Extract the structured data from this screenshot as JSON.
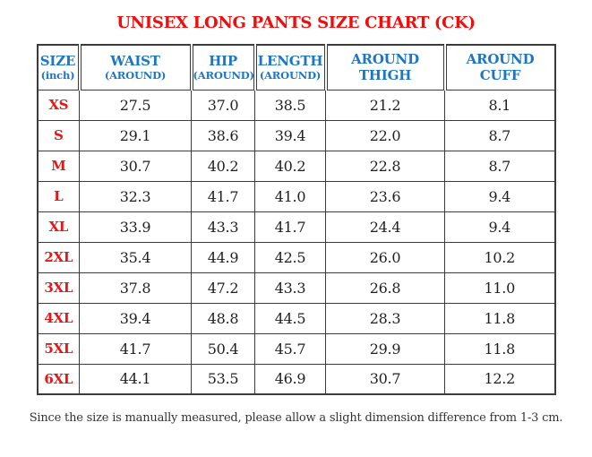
{
  "page": {
    "title": "UNISEX LONG PANTS SIZE CHART (CK)",
    "note": "Since the size is manually measured, please allow a slight dimension difference from 1-3 cm."
  },
  "colors": {
    "title_red": "#f20d0d",
    "header_blue": "#1d76c4",
    "size_red": "#ee1212",
    "value_text": "#1f1f1f",
    "border": "#3b3b3b",
    "note_text": "#333333"
  },
  "table": {
    "columns": [
      {
        "label": "SIZE",
        "sub": "(inch)"
      },
      {
        "label": "WAIST",
        "sub": "(AROUND)"
      },
      {
        "label": "HIP",
        "sub": "(AROUND)"
      },
      {
        "label": "LENGTH",
        "sub": "(AROUND)"
      },
      {
        "label": "AROUND",
        "sub": "THIGH"
      },
      {
        "label": "AROUND",
        "sub": "CUFF"
      }
    ],
    "rows": [
      {
        "size": "XS",
        "values": [
          "27.5",
          "37.0",
          "38.5",
          "21.2",
          "8.1"
        ]
      },
      {
        "size": "S",
        "values": [
          "29.1",
          "38.6",
          "39.4",
          "22.0",
          "8.7"
        ]
      },
      {
        "size": "M",
        "values": [
          "30.7",
          "40.2",
          "40.2",
          "22.8",
          "8.7"
        ]
      },
      {
        "size": "L",
        "values": [
          "32.3",
          "41.7",
          "41.0",
          "23.6",
          "9.4"
        ]
      },
      {
        "size": "XL",
        "values": [
          "33.9",
          "43.3",
          "41.7",
          "24.4",
          "9.4"
        ]
      },
      {
        "size": "2XL",
        "values": [
          "35.4",
          "44.9",
          "42.5",
          "26.0",
          "10.2"
        ]
      },
      {
        "size": "3XL",
        "values": [
          "37.8",
          "47.2",
          "43.3",
          "26.8",
          "11.0"
        ]
      },
      {
        "size": "4XL",
        "values": [
          "39.4",
          "48.8",
          "44.5",
          "28.3",
          "11.8"
        ]
      },
      {
        "size": "5XL",
        "values": [
          "41.7",
          "50.4",
          "45.7",
          "29.9",
          "11.8"
        ]
      },
      {
        "size": "6XL",
        "values": [
          "44.1",
          "53.5",
          "46.9",
          "30.7",
          "12.2"
        ]
      }
    ]
  },
  "chart_data": {
    "type": "table",
    "title": "UNISEX LONG PANTS SIZE CHART (CK)",
    "unit": "inch",
    "columns": [
      "SIZE (inch)",
      "WAIST (AROUND)",
      "HIP (AROUND)",
      "LENGTH (AROUND)",
      "AROUND THIGH",
      "AROUND CUFF"
    ],
    "rows": [
      [
        "XS",
        27.5,
        37.0,
        38.5,
        21.2,
        8.1
      ],
      [
        "S",
        29.1,
        38.6,
        39.4,
        22.0,
        8.7
      ],
      [
        "M",
        30.7,
        40.2,
        40.2,
        22.8,
        8.7
      ],
      [
        "L",
        32.3,
        41.7,
        41.0,
        23.6,
        9.4
      ],
      [
        "XL",
        33.9,
        43.3,
        41.7,
        24.4,
        9.4
      ],
      [
        "2XL",
        35.4,
        44.9,
        42.5,
        26.0,
        10.2
      ],
      [
        "3XL",
        37.8,
        47.2,
        43.3,
        26.8,
        11.0
      ],
      [
        "4XL",
        39.4,
        48.8,
        44.5,
        28.3,
        11.8
      ],
      [
        "5XL",
        41.7,
        50.4,
        45.7,
        29.9,
        11.8
      ],
      [
        "6XL",
        44.1,
        53.5,
        46.9,
        30.7,
        12.2
      ]
    ],
    "note": "Since the size is manually measured, please allow a slight dimension difference from 1-3 cm."
  }
}
